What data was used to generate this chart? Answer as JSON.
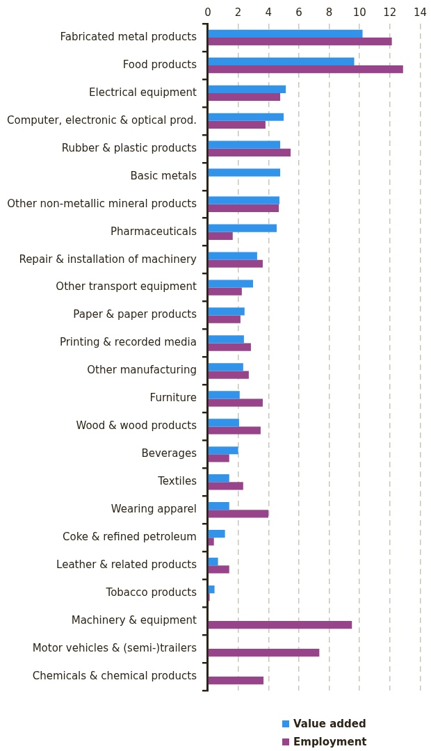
{
  "chart_data": {
    "type": "bar",
    "orientation": "horizontal",
    "categories": [
      "Fabricated metal products",
      "Food products",
      "Electrical equipment",
      "Computer, electronic & optical prod.",
      "Rubber & plastic products",
      "Basic metals",
      "Other non-metallic mineral products",
      "Pharmaceuticals",
      "Repair & installation of machinery",
      "Other transport equipment",
      "Paper & paper products",
      "Printing & recorded media",
      "Other manufacturing",
      "Furniture",
      "Wood & wood products",
      "Beverages",
      "Textiles",
      "Wearing apparel",
      "Coke & refined petroleum",
      "Leather & related products",
      "Tobacco products",
      "Machinery & equipment",
      "Motor vehicles & (semi-)trailers",
      "Chemicals & chemical products"
    ],
    "series": [
      {
        "name": "Value added",
        "color": "#3193ea",
        "values": [
          10.2,
          9.65,
          5.14,
          5.0,
          4.77,
          4.77,
          4.72,
          4.54,
          3.25,
          2.98,
          2.42,
          2.38,
          2.33,
          2.1,
          2.06,
          2.0,
          1.41,
          1.41,
          1.13,
          0.67,
          0.44,
          null,
          null,
          null
        ]
      },
      {
        "name": "Employment",
        "color": "#98448a",
        "values": [
          12.13,
          12.87,
          4.77,
          3.8,
          5.46,
          null,
          4.68,
          1.64,
          3.62,
          2.24,
          2.15,
          2.84,
          2.7,
          3.62,
          3.48,
          1.41,
          2.33,
          3.99,
          0.4,
          1.41,
          0.12,
          9.5,
          7.35,
          3.67
        ]
      }
    ],
    "xlim": [
      0,
      14
    ],
    "xticks": [
      0,
      2,
      4,
      6,
      8,
      10,
      12,
      14
    ],
    "grid": "x",
    "legend": "bottom"
  }
}
